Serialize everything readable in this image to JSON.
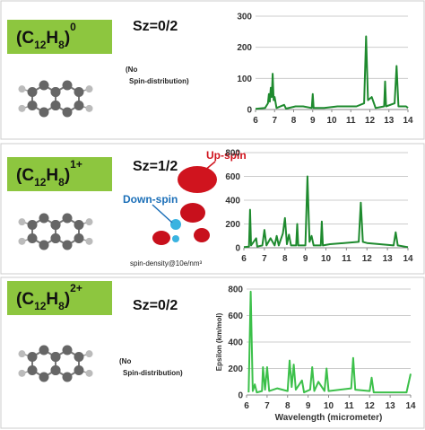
{
  "panels": [
    {
      "formula": {
        "open": "(C",
        "sub1": "12",
        "mid": "H",
        "sub2": "8",
        "close": ")",
        "sup": "0"
      },
      "sz": "Sz=0/2",
      "note": [
        "(No",
        "Spin-distribution)"
      ]
    },
    {
      "formula": {
        "open": "(C",
        "sub1": "12",
        "mid": "H",
        "sub2": "8",
        "close": ")",
        "sup": "1+"
      },
      "sz": "Sz=1/2",
      "up_spin": "Up-spin",
      "down_spin": "Down-spin",
      "density": "spin-density@10e/nm³"
    },
    {
      "formula": {
        "open": "(C",
        "sub1": "12",
        "mid": "H",
        "sub2": "8",
        "close": ")",
        "sup": "2+"
      },
      "sz": "Sz=0/2",
      "note": [
        "(No",
        "Spin-distribution)"
      ]
    }
  ],
  "chart_data": [
    {
      "type": "line",
      "color": "#1e8a2e",
      "grid": true,
      "x": [
        6,
        6.5,
        6.65,
        6.7,
        6.75,
        6.8,
        6.85,
        6.9,
        6.95,
        7.0,
        7.1,
        7.5,
        7.6,
        8.1,
        8.5,
        8.95,
        9.0,
        9.05,
        9.6,
        10.3,
        11.3,
        11.7,
        11.8,
        11.9,
        12.1,
        12.3,
        12.75,
        12.8,
        12.85,
        13.3,
        13.4,
        13.5,
        13.9,
        14
      ],
      "values": [
        2,
        5,
        20,
        50,
        25,
        70,
        40,
        115,
        30,
        40,
        5,
        15,
        3,
        10,
        10,
        5,
        50,
        5,
        5,
        10,
        10,
        20,
        235,
        30,
        40,
        5,
        10,
        90,
        10,
        20,
        140,
        10,
        10,
        5
      ],
      "xlim": [
        6,
        14
      ],
      "xticks": [
        6,
        7,
        8,
        9,
        10,
        11,
        12,
        13,
        14
      ],
      "ylim": [
        0,
        300
      ],
      "yticks": [
        0,
        100,
        200,
        300
      ]
    },
    {
      "type": "line",
      "color": "#1e8a2e",
      "grid": true,
      "x": [
        6,
        6.25,
        6.3,
        6.35,
        6.6,
        6.65,
        6.9,
        7.0,
        7.1,
        7.3,
        7.5,
        7.6,
        7.7,
        7.9,
        8.0,
        8.1,
        8.2,
        8.3,
        8.55,
        8.6,
        8.65,
        9.0,
        9.1,
        9.2,
        9.3,
        9.4,
        9.75,
        9.8,
        9.85,
        10.2,
        11.6,
        11.7,
        11.8,
        12.0,
        13.3,
        13.4,
        13.5,
        14
      ],
      "values": [
        5,
        10,
        320,
        20,
        80,
        10,
        20,
        150,
        20,
        80,
        20,
        100,
        20,
        120,
        250,
        30,
        110,
        20,
        20,
        200,
        20,
        20,
        600,
        50,
        100,
        20,
        20,
        220,
        20,
        30,
        50,
        380,
        50,
        40,
        20,
        130,
        20,
        5
      ],
      "xlim": [
        6,
        14
      ],
      "xticks": [
        6,
        7,
        8,
        9,
        10,
        11,
        12,
        13,
        14
      ],
      "ylim": [
        0,
        800
      ],
      "yticks": [
        0,
        200,
        400,
        600,
        800
      ]
    },
    {
      "type": "line",
      "color": "#3cc04a",
      "grid": true,
      "x": [
        6.1,
        6.2,
        6.3,
        6.4,
        6.5,
        6.75,
        6.8,
        6.9,
        7.0,
        7.1,
        7.5,
        8.0,
        8.1,
        8.2,
        8.3,
        8.4,
        8.7,
        8.8,
        9.1,
        9.2,
        9.3,
        9.5,
        9.8,
        9.9,
        10.0,
        11.1,
        11.2,
        11.3,
        12.0,
        12.1,
        12.2,
        13.8,
        14
      ],
      "values": [
        20,
        780,
        30,
        80,
        20,
        30,
        210,
        40,
        210,
        30,
        50,
        30,
        260,
        60,
        230,
        40,
        110,
        20,
        40,
        210,
        30,
        100,
        30,
        200,
        30,
        50,
        280,
        40,
        30,
        130,
        20,
        20,
        160
      ],
      "xlim": [
        6,
        14
      ],
      "xticks": [
        6,
        7,
        8,
        9,
        10,
        11,
        12,
        13,
        14
      ],
      "ylim": [
        0,
        800
      ],
      "yticks": [
        0,
        200,
        400,
        600,
        800
      ],
      "xlabel": "Wavelength (micrometer)",
      "ylabel": "Epsilon (km/mol)"
    }
  ]
}
